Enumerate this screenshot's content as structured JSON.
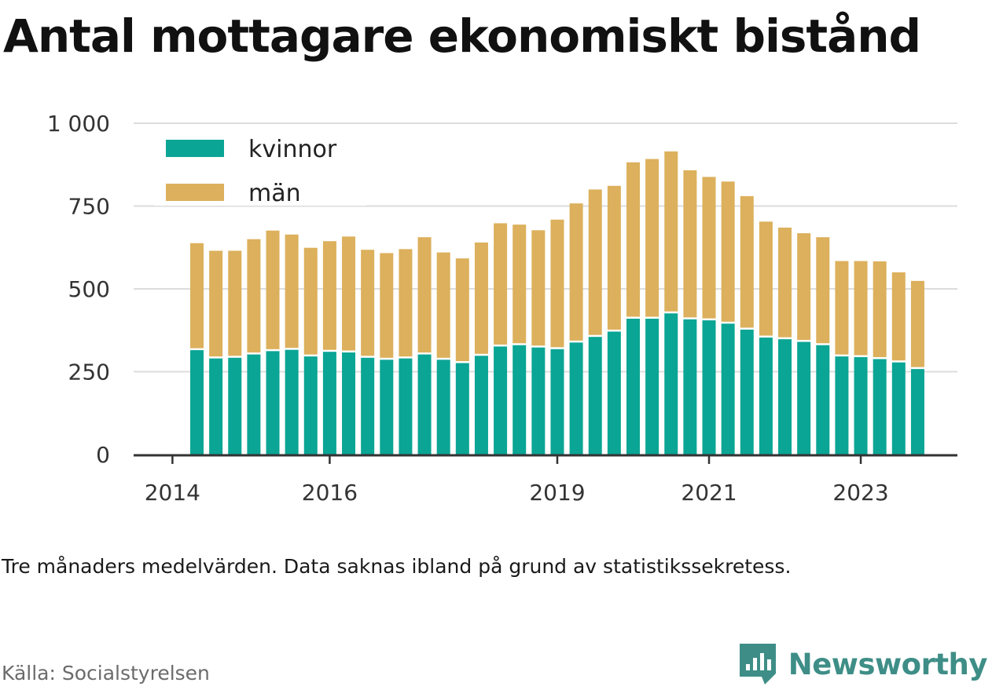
{
  "title": "Antal mottagare ekonomiskt bistånd",
  "note": "Tre månaders medelvärden. Data saknas ibland på grund av statistikssekretess.",
  "source": "Källa: Socialstyrelsen",
  "brand": {
    "name": "Newsworthy",
    "color": "#3e8e87",
    "icon": "bar-chart-icon"
  },
  "chart_data": {
    "type": "bar",
    "stacked": true,
    "ylim": [
      0,
      1000
    ],
    "yticks": [
      0,
      250,
      500,
      750,
      1000
    ],
    "ytick_labels": [
      "0",
      "250",
      "500",
      "750",
      "1 000"
    ],
    "xtick_labels": [
      {
        "label": "2014",
        "index": -1
      },
      {
        "label": "2016",
        "index": 7
      },
      {
        "label": "2019",
        "index": 19
      },
      {
        "label": "2021",
        "index": 27
      },
      {
        "label": "2023",
        "index": 35
      }
    ],
    "grid": true,
    "legend_position": "top-left",
    "series": [
      {
        "name": "kvinnor",
        "color": "#0aa594",
        "values": [
          315,
          290,
          292,
          302,
          312,
          316,
          296,
          310,
          308,
          292,
          286,
          290,
          302,
          286,
          276,
          298,
          326,
          330,
          323,
          318,
          338,
          355,
          371,
          410,
          410,
          426,
          408,
          405,
          395,
          377,
          353,
          348,
          340,
          330,
          296,
          294,
          288,
          278,
          258
        ]
      },
      {
        "name": "män",
        "color": "#dcb05c",
        "values": [
          323,
          325,
          323,
          348,
          364,
          348,
          328,
          334,
          350,
          326,
          322,
          330,
          354,
          324,
          316,
          342,
          372,
          364,
          354,
          391,
          420,
          445,
          440,
          472,
          482,
          489,
          450,
          433,
          429,
          403,
          350,
          337,
          328,
          326,
          288,
          290,
          295,
          272,
          266
        ]
      }
    ]
  }
}
